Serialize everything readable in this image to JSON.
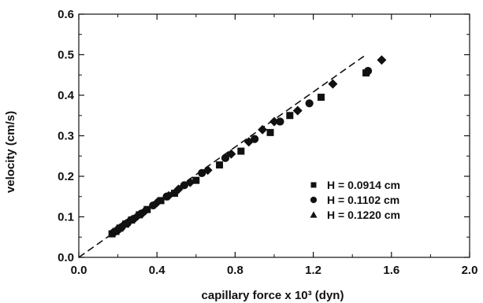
{
  "chart_data": {
    "type": "scatter",
    "title": "",
    "xlabel": "capillary force x 10³ (dyn)",
    "ylabel": "velocity (cm/s)",
    "xlim": [
      0.0,
      2.0
    ],
    "ylim": [
      0.0,
      0.6
    ],
    "xticks": [
      "0.0",
      "0.4",
      "0.8",
      "1.2",
      "1.6",
      "2.0"
    ],
    "yticks": [
      "0.0",
      "0.1",
      "0.2",
      "0.3",
      "0.4",
      "0.5",
      "0.6"
    ],
    "grid": false,
    "legend_position": "lower-right",
    "series": [
      {
        "name": "H = 0.0914 cm",
        "marker": "square",
        "color": "#111111",
        "points": [
          [
            0.17,
            0.058
          ],
          [
            0.19,
            0.064
          ],
          [
            0.21,
            0.072
          ],
          [
            0.24,
            0.082
          ],
          [
            0.27,
            0.092
          ],
          [
            0.31,
            0.105
          ],
          [
            0.35,
            0.118
          ],
          [
            0.42,
            0.14
          ],
          [
            0.49,
            0.158
          ],
          [
            0.6,
            0.19
          ],
          [
            0.72,
            0.228
          ],
          [
            0.83,
            0.262
          ],
          [
            0.98,
            0.308
          ],
          [
            1.08,
            0.35
          ],
          [
            1.24,
            0.395
          ],
          [
            1.47,
            0.455
          ]
        ]
      },
      {
        "name": "H = 0.1102 cm",
        "marker": "circle",
        "color": "#111111",
        "points": [
          [
            0.18,
            0.062
          ],
          [
            0.2,
            0.068
          ],
          [
            0.22,
            0.075
          ],
          [
            0.25,
            0.085
          ],
          [
            0.28,
            0.095
          ],
          [
            0.32,
            0.108
          ],
          [
            0.38,
            0.128
          ],
          [
            0.45,
            0.15
          ],
          [
            0.54,
            0.178
          ],
          [
            0.63,
            0.208
          ],
          [
            0.75,
            0.245
          ],
          [
            0.9,
            0.292
          ],
          [
            1.03,
            0.335
          ],
          [
            1.18,
            0.38
          ],
          [
            1.48,
            0.46
          ]
        ]
      },
      {
        "name": "H = 0.1220 cm",
        "marker": "diamond",
        "color": "#111111",
        "points": [
          [
            0.2,
            0.07
          ],
          [
            0.23,
            0.08
          ],
          [
            0.26,
            0.09
          ],
          [
            0.3,
            0.102
          ],
          [
            0.34,
            0.115
          ],
          [
            0.4,
            0.135
          ],
          [
            0.46,
            0.152
          ],
          [
            0.51,
            0.168
          ],
          [
            0.57,
            0.185
          ],
          [
            0.66,
            0.215
          ],
          [
            0.78,
            0.255
          ],
          [
            0.87,
            0.285
          ],
          [
            0.94,
            0.315
          ],
          [
            1.0,
            0.335
          ],
          [
            1.12,
            0.362
          ],
          [
            1.3,
            0.428
          ],
          [
            1.55,
            0.487
          ]
        ]
      }
    ],
    "fit_line": {
      "style": "dashed",
      "points": [
        [
          0.0,
          0.0
        ],
        [
          1.47,
          0.5
        ]
      ]
    }
  }
}
